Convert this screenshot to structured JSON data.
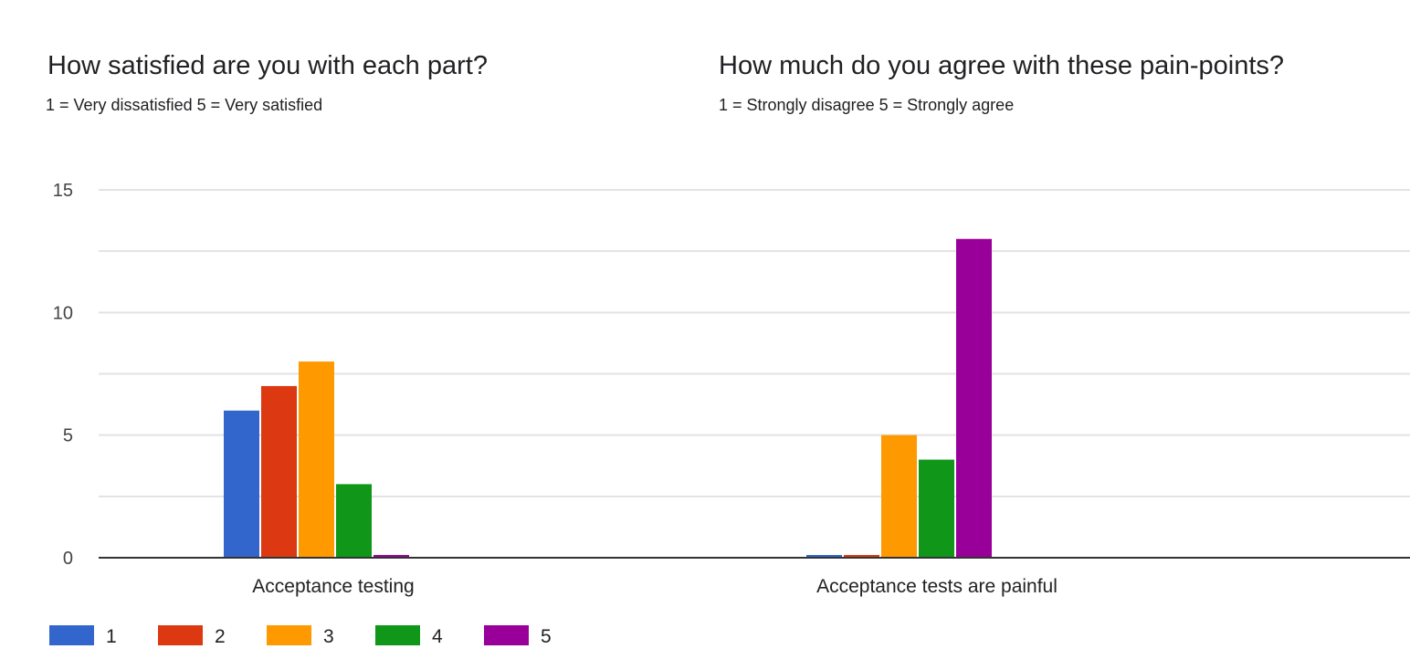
{
  "chart_data": [
    {
      "type": "bar",
      "title": "How satisfied are you with each part?",
      "subtitle": "1 = Very dissatisfied   5 = Very satisfied",
      "categories": [
        "Acceptance testing"
      ],
      "series": [
        {
          "name": "1",
          "values": [
            6
          ]
        },
        {
          "name": "2",
          "values": [
            7
          ]
        },
        {
          "name": "3",
          "values": [
            8
          ]
        },
        {
          "name": "4",
          "values": [
            3
          ]
        },
        {
          "name": "5",
          "values": [
            0
          ]
        }
      ],
      "ylim": [
        0,
        15
      ],
      "yticks": [
        "0",
        "5",
        "10",
        "15"
      ],
      "grid": true,
      "legend": "bottom-left"
    },
    {
      "type": "bar",
      "title": "How much do you agree with these pain-points?",
      "subtitle": "1 = Strongly disagree   5 = Strongly agree",
      "categories": [
        "Acceptance tests are painful"
      ],
      "series": [
        {
          "name": "1",
          "values": [
            0
          ]
        },
        {
          "name": "2",
          "values": [
            0
          ]
        },
        {
          "name": "3",
          "values": [
            5
          ]
        },
        {
          "name": "4",
          "values": [
            4
          ]
        },
        {
          "name": "5",
          "values": [
            13
          ]
        }
      ],
      "ylim": [
        0,
        15
      ],
      "grid": true
    }
  ],
  "colors": [
    "#3366cc",
    "#dc3912",
    "#ff9900",
    "#109618",
    "#990099"
  ]
}
